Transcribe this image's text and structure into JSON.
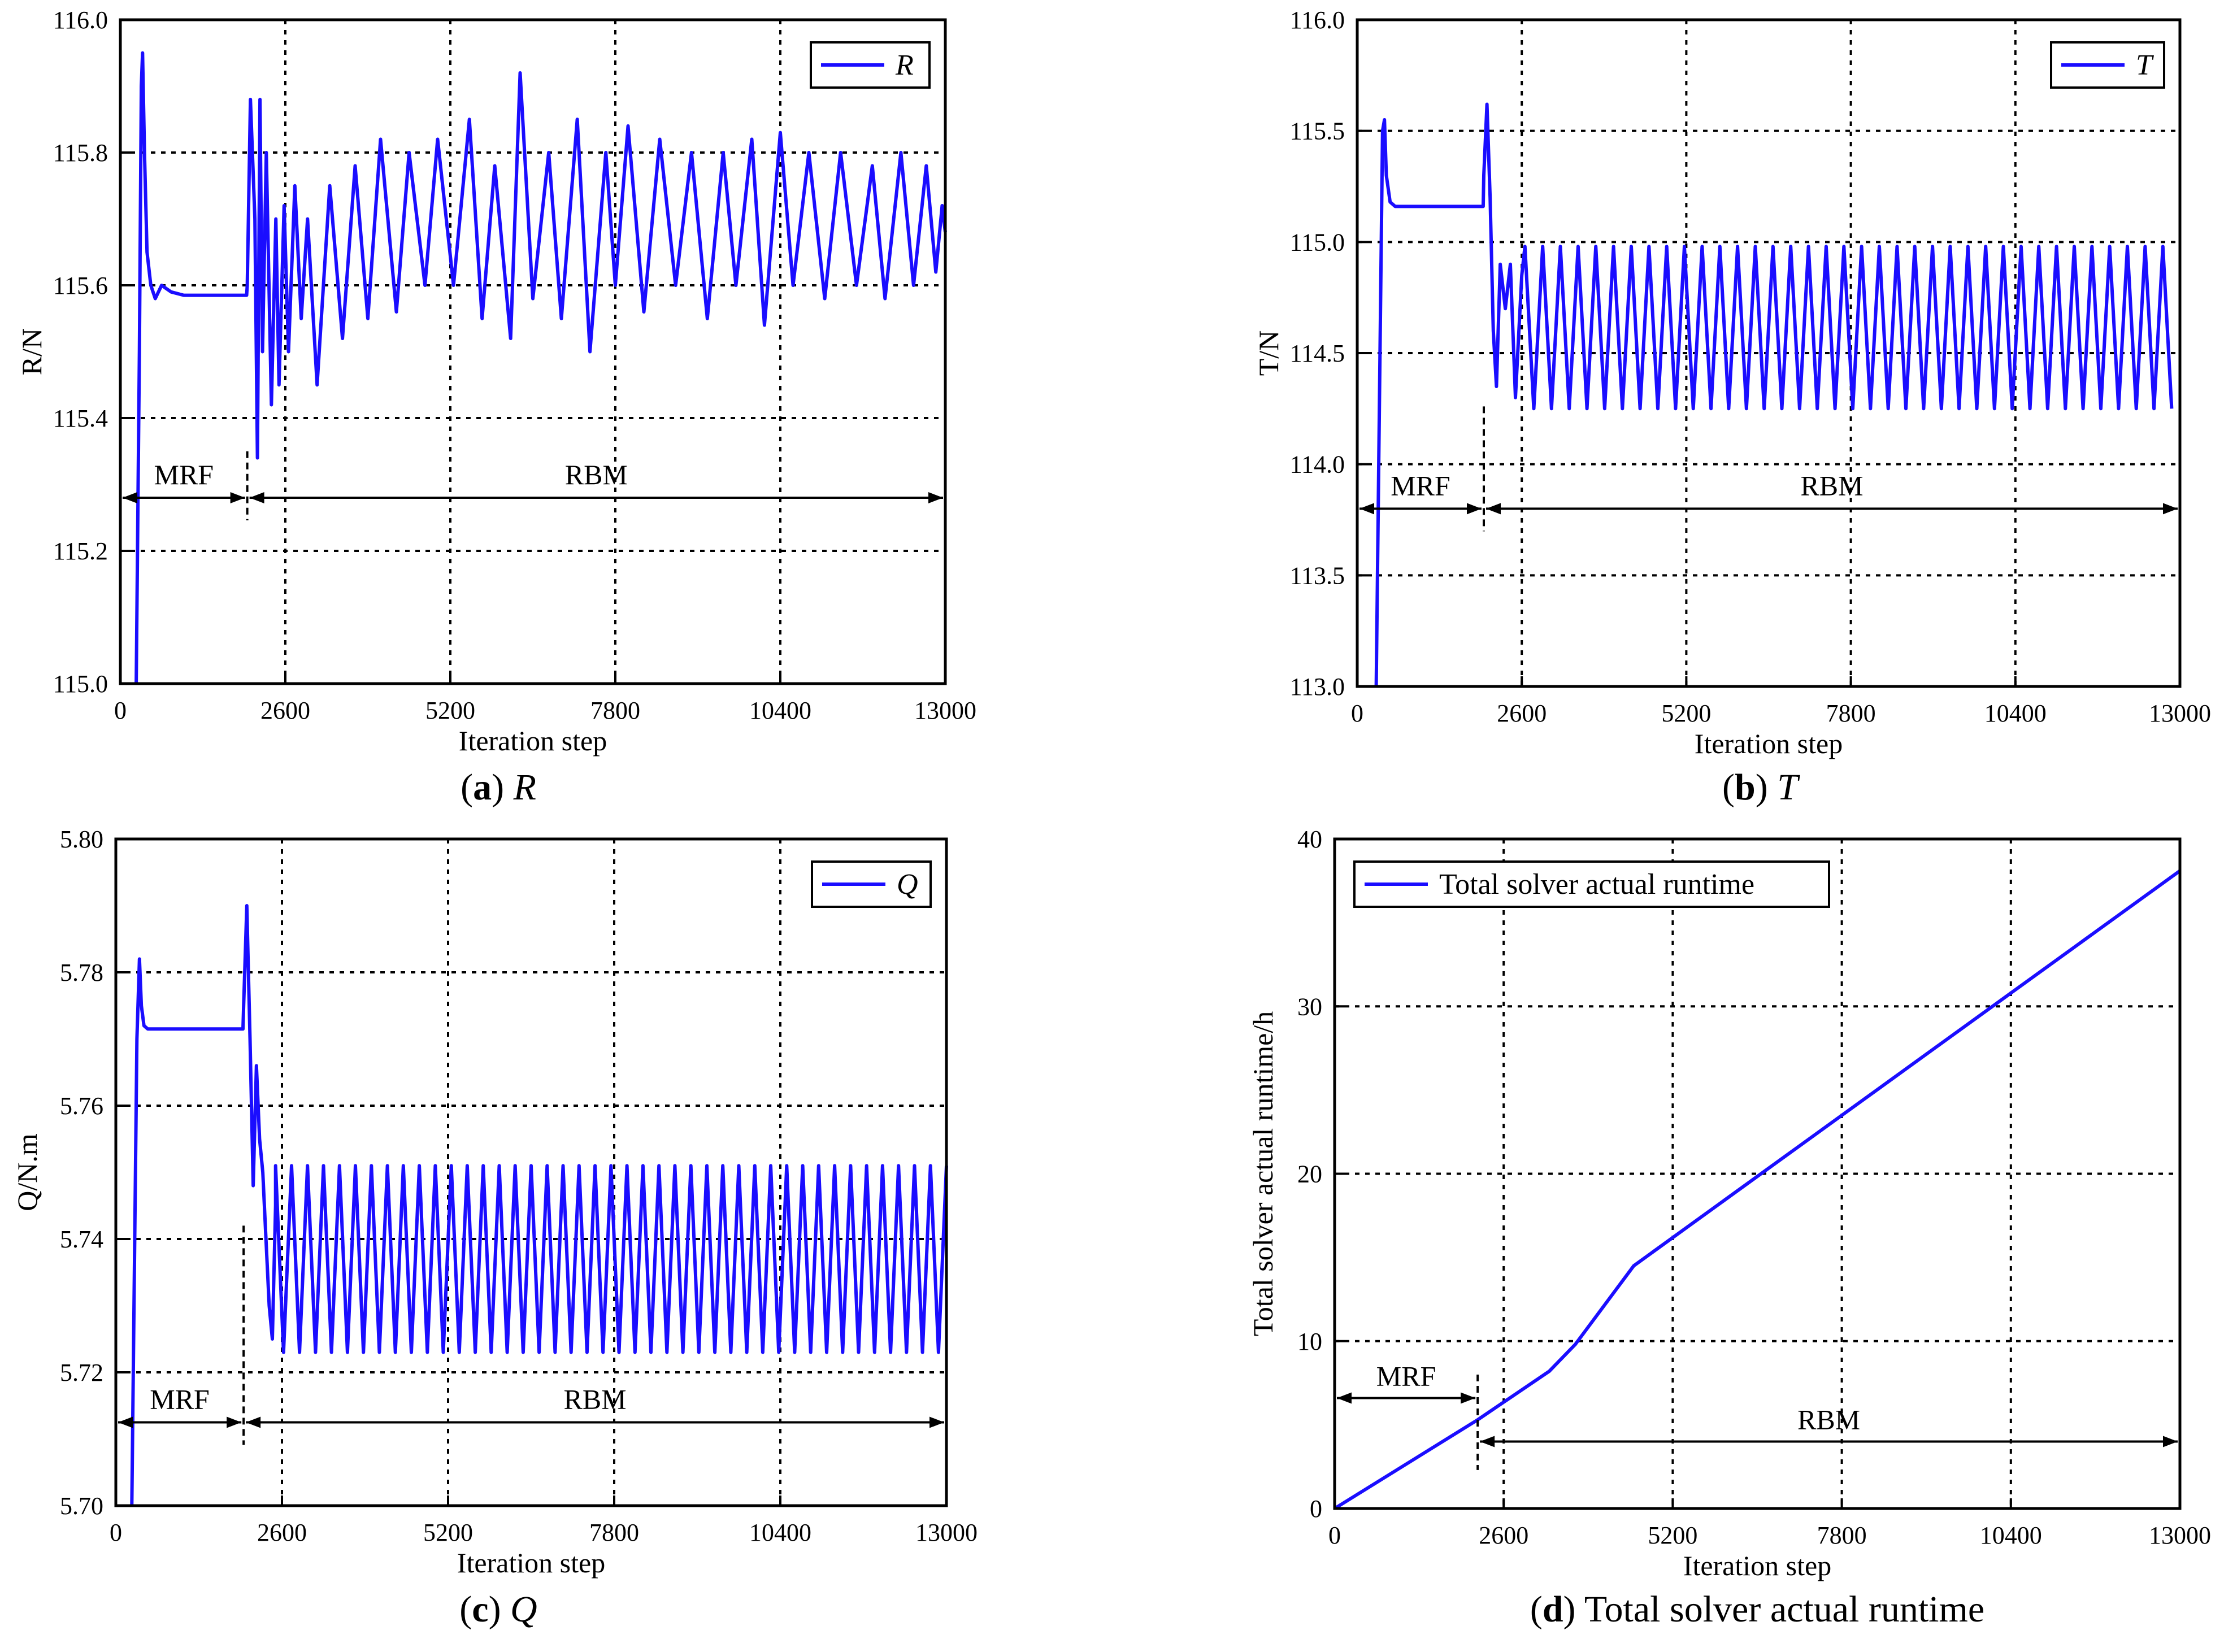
{
  "figure": {
    "background": "#ffffff",
    "series_color": "#1a0dff"
  },
  "chart_data": [
    {
      "id": "a",
      "type": "line",
      "caption_letter": "a",
      "caption_text": "R",
      "xlabel": "Iteration step",
      "ylabel": "R/N",
      "xlim": [
        0,
        13000
      ],
      "ylim": [
        115.0,
        116.0
      ],
      "xticks": [
        0,
        2600,
        5200,
        7800,
        10400,
        13000
      ],
      "xtick_labels": [
        "0",
        "2600",
        "5200",
        "7800",
        "10400",
        "13000"
      ],
      "yticks": [
        115.0,
        115.2,
        115.4,
        115.6,
        115.8,
        116.0
      ],
      "ytick_labels": [
        "115.0",
        "115.2",
        "115.4",
        "115.6",
        "115.8",
        "116.0"
      ],
      "grid": true,
      "legend": {
        "label": "R",
        "position": "top-right"
      },
      "switch_x": 2000,
      "mrf_label": "MRF",
      "rbm_label": "RBM",
      "arrow_y": 115.28,
      "series": {
        "name": "R",
        "x": [
          250,
          300,
          330,
          350,
          380,
          420,
          480,
          550,
          650,
          800,
          1000,
          1300,
          1600,
          1990,
          2000,
          2050,
          2120,
          2160,
          2200,
          2240,
          2300,
          2380,
          2450,
          2500,
          2580,
          2650,
          2750,
          2850,
          2950,
          3100,
          3300,
          3500,
          3700,
          3900,
          4100,
          4350,
          4550,
          4800,
          5000,
          5250,
          5500,
          5700,
          5900,
          6150,
          6300,
          6500,
          6750,
          6950,
          7200,
          7400,
          7650,
          7800,
          8000,
          8250,
          8500,
          8750,
          9000,
          9250,
          9500,
          9700,
          9950,
          10150,
          10400,
          10600,
          10850,
          11100,
          11350,
          11600,
          11850,
          12050,
          12300,
          12500,
          12700,
          12850,
          12950,
          13000
        ],
        "values": [
          115.0,
          115.5,
          115.9,
          115.95,
          115.8,
          115.65,
          115.6,
          115.58,
          115.6,
          115.59,
          115.585,
          115.585,
          115.585,
          115.585,
          115.6,
          115.88,
          115.7,
          115.34,
          115.88,
          115.5,
          115.8,
          115.42,
          115.7,
          115.45,
          115.72,
          115.5,
          115.75,
          115.55,
          115.7,
          115.45,
          115.75,
          115.52,
          115.78,
          115.55,
          115.82,
          115.56,
          115.8,
          115.6,
          115.82,
          115.6,
          115.85,
          115.55,
          115.78,
          115.52,
          115.92,
          115.58,
          115.8,
          115.55,
          115.85,
          115.5,
          115.8,
          115.6,
          115.84,
          115.56,
          115.82,
          115.6,
          115.8,
          115.55,
          115.8,
          115.6,
          115.82,
          115.54,
          115.83,
          115.6,
          115.8,
          115.58,
          115.8,
          115.6,
          115.78,
          115.58,
          115.8,
          115.6,
          115.78,
          115.62,
          115.72,
          115.68
        ]
      }
    },
    {
      "id": "b",
      "type": "line",
      "caption_letter": "b",
      "caption_text": "T",
      "xlabel": "Iteration step",
      "ylabel": "T/N",
      "xlim": [
        0,
        13000
      ],
      "ylim": [
        113.0,
        116.0
      ],
      "xticks": [
        0,
        2600,
        5200,
        7800,
        10400,
        13000
      ],
      "xtick_labels": [
        "0",
        "2600",
        "5200",
        "7800",
        "10400",
        "13000"
      ],
      "yticks": [
        113.0,
        113.5,
        114.0,
        114.5,
        115.0,
        115.5,
        116.0
      ],
      "ytick_labels": [
        "113.0",
        "113.5",
        "114.0",
        "114.5",
        "115.0",
        "115.5",
        "116.0"
      ],
      "grid": true,
      "legend": {
        "label": "T",
        "position": "top-right"
      },
      "switch_x": 2000,
      "mrf_label": "MRF",
      "rbm_label": "RBM",
      "arrow_y": 113.8,
      "series": {
        "name": "T",
        "x": [
          300,
          360,
          400,
          430,
          460,
          520,
          600,
          800,
          1200,
          1600,
          1990,
          2000,
          2050,
          2100,
          2150,
          2200,
          2260,
          2340,
          2420,
          2500,
          2600
        ],
        "values": [
          113.0,
          114.5,
          115.5,
          115.55,
          115.3,
          115.18,
          115.16,
          115.16,
          115.16,
          115.16,
          115.16,
          115.3,
          115.62,
          115.2,
          114.6,
          114.35,
          114.9,
          114.7,
          114.9,
          114.3,
          114.85
        ],
        "oscillation": {
          "start": 2650,
          "end": 13000,
          "period": 280,
          "low": 114.25,
          "high": 114.98
        }
      }
    },
    {
      "id": "c",
      "type": "line",
      "caption_letter": "c",
      "caption_text": "Q",
      "xlabel": "Iteration step",
      "ylabel": "Q/N.m",
      "xlim": [
        0,
        13000
      ],
      "ylim": [
        5.7,
        5.8
      ],
      "xticks": [
        0,
        2600,
        5200,
        7800,
        10400,
        13000
      ],
      "xtick_labels": [
        "0",
        "2600",
        "5200",
        "7800",
        "10400",
        "13000"
      ],
      "yticks": [
        5.7,
        5.72,
        5.74,
        5.76,
        5.78,
        5.8
      ],
      "ytick_labels": [
        "5.70",
        "5.72",
        "5.74",
        "5.76",
        "5.78",
        "5.80"
      ],
      "grid": true,
      "legend": {
        "label": "Q",
        "position": "top-right"
      },
      "switch_x": 2000,
      "mrf_label": "MRF",
      "rbm_label": "RBM",
      "arrow_y": 5.7125,
      "series": {
        "name": "Q",
        "x": [
          250,
          330,
          370,
          400,
          440,
          500,
          600,
          900,
          1300,
          1700,
          1990,
          2000,
          2050,
          2100,
          2150,
          2200,
          2250,
          2300,
          2350,
          2400,
          2450,
          2500
        ],
        "values": [
          5.7,
          5.77,
          5.782,
          5.775,
          5.772,
          5.7715,
          5.7715,
          5.7715,
          5.7715,
          5.7715,
          5.7715,
          5.775,
          5.79,
          5.77,
          5.748,
          5.766,
          5.755,
          5.75,
          5.74,
          5.73,
          5.725,
          5.745
        ],
        "oscillation": {
          "start": 2500,
          "end": 13000,
          "period": 250,
          "low": 5.723,
          "high": 5.751
        }
      }
    },
    {
      "id": "d",
      "type": "line",
      "caption_letter": "d",
      "caption_text": "Total solver actual runtime",
      "xlabel": "Iteration step",
      "ylabel": "Total solver actual runtime/h",
      "xlim": [
        0,
        13000
      ],
      "ylim": [
        0,
        40
      ],
      "xticks": [
        0,
        2600,
        5200,
        7800,
        10400,
        13000
      ],
      "xtick_labels": [
        "0",
        "2600",
        "5200",
        "7800",
        "10400",
        "13000"
      ],
      "yticks": [
        0,
        10,
        20,
        30,
        40
      ],
      "ytick_labels": [
        "0",
        "10",
        "20",
        "30",
        "40"
      ],
      "grid": true,
      "legend": {
        "label": "Total solver actual runtime",
        "position": "top-left"
      },
      "switch_x": 2200,
      "mrf_label": "MRF",
      "rbm_label": "RBM",
      "mrf_arrow_y": 6.6,
      "rbm_arrow_y": 4.0,
      "series": {
        "name": "Total solver actual runtime",
        "x": [
          0,
          2200,
          3300,
          3700,
          4600,
          13000
        ],
        "values": [
          0,
          5.3,
          8.2,
          9.8,
          14.5,
          38.1
        ]
      }
    }
  ]
}
